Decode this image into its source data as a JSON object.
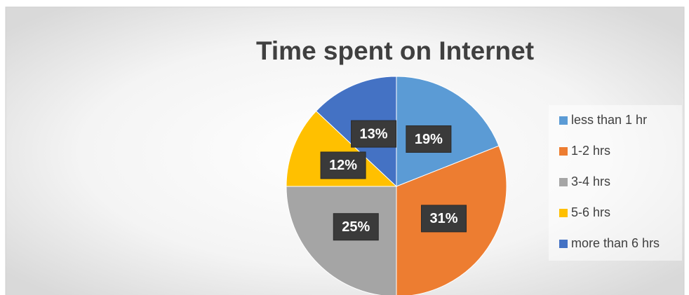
{
  "chart_data": {
    "type": "pie",
    "title": "Time spent on Internet",
    "categories": [
      "less than 1 hr",
      "1-2 hrs",
      "3-4 hrs",
      "5-6 hrs",
      "more than 6 hrs"
    ],
    "values": [
      19,
      31,
      25,
      12,
      13
    ],
    "value_labels": [
      "19%",
      "31%",
      "25%",
      "12%",
      "13%"
    ],
    "colors": [
      "#5b9bd5",
      "#ed7d31",
      "#a5a5a5",
      "#ffc000",
      "#4472c4"
    ],
    "legend": "right"
  }
}
